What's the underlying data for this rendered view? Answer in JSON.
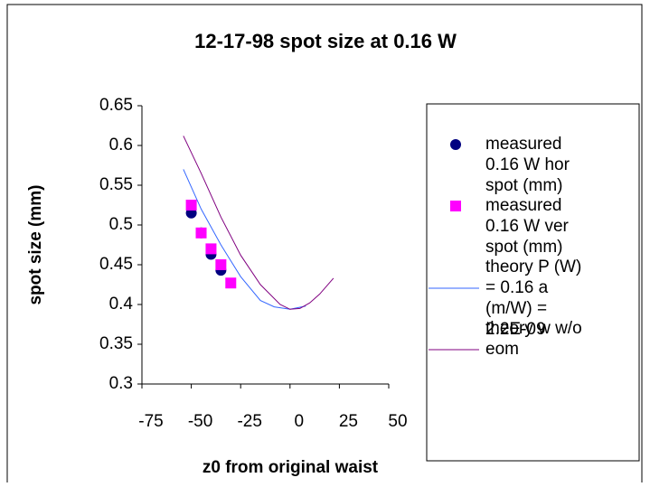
{
  "chart_data": {
    "type": "scatter",
    "title": "12-17-98 spot size at 0.16 W",
    "x_label": "z0 from original waist",
    "y_label": "spot size (mm)",
    "xlim": [
      -75,
      50
    ],
    "xticks": [
      -75,
      -50,
      -25,
      0,
      25,
      50
    ],
    "ylim": [
      0.3,
      0.65
    ],
    "yticks": [
      0.3,
      0.35,
      0.4,
      0.45,
      0.5,
      0.55,
      0.6,
      0.65
    ],
    "legend": "right",
    "series": [
      {
        "name": "measured 0.16 W hor spot (mm)",
        "color": "#000080",
        "marker": "circle",
        "x": [
          -50,
          -45,
          -40,
          -35
        ],
        "values": [
          0.515,
          0.49,
          0.463,
          0.443
        ]
      },
      {
        "name": "measured 0.16 W ver spot (mm)",
        "color": "#ff00ff",
        "marker": "square",
        "x": [
          -50,
          -45,
          -40,
          -35,
          -30
        ],
        "values": [
          0.525,
          0.49,
          0.47,
          0.45,
          0.427
        ]
      },
      {
        "name": "theory P (W) = 0.16 a (m/W) = 2.2E-09",
        "color": "#3366ff",
        "marker": "line",
        "x": [
          -54,
          -45,
          -35,
          -25,
          -15,
          -8,
          0,
          8
        ],
        "values": [
          0.57,
          0.52,
          0.475,
          0.435,
          0.405,
          0.397,
          0.394,
          0.398
        ]
      },
      {
        "name": "theory w w/o eom",
        "color": "#800080",
        "marker": "line",
        "x": [
          -54,
          -45,
          -35,
          -25,
          -15,
          -5,
          0,
          5,
          10,
          15,
          22
        ],
        "values": [
          0.612,
          0.565,
          0.51,
          0.462,
          0.425,
          0.4,
          0.394,
          0.395,
          0.402,
          0.413,
          0.433
        ]
      }
    ]
  }
}
